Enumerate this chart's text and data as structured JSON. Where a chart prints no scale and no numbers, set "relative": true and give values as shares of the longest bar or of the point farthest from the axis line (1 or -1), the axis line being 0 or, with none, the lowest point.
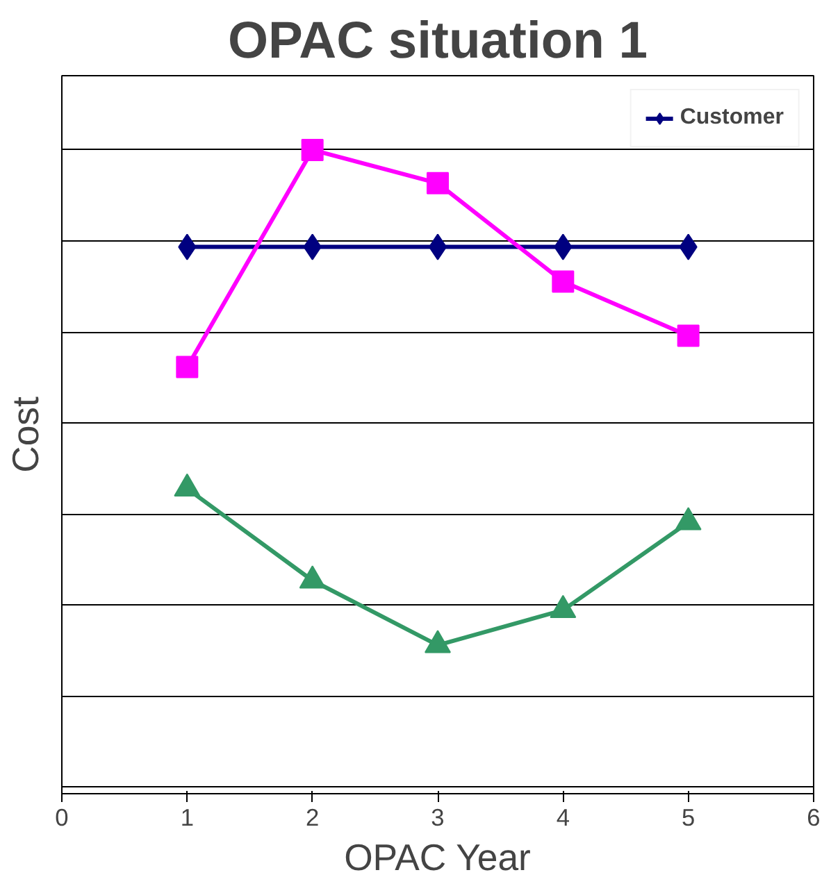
{
  "chart_data": {
    "type": "line",
    "title": "OPAC situation 1",
    "xlabel": "OPAC Year",
    "ylabel": "Cost",
    "relative": true,
    "xlim": [
      0,
      6
    ],
    "xticks": [
      0,
      1,
      2,
      3,
      4,
      5,
      6
    ],
    "x": [
      1,
      2,
      3,
      4,
      5
    ],
    "grid": "y",
    "legend": "top right",
    "series": [
      {
        "name": "Customer",
        "color": "#000080",
        "marker": "diamond",
        "values": [
          0.787,
          0.787,
          0.787,
          0.787,
          0.787
        ]
      },
      {
        "color": "#ff00ff",
        "marker": "square",
        "values": [
          0.523,
          1,
          0.927,
          0.711,
          0.592
        ]
      },
      {
        "color": "#339966",
        "marker": "triangle",
        "values": [
          0.256,
          0.054,
          -0.088,
          -0.011,
          0.182
        ]
      }
    ]
  }
}
